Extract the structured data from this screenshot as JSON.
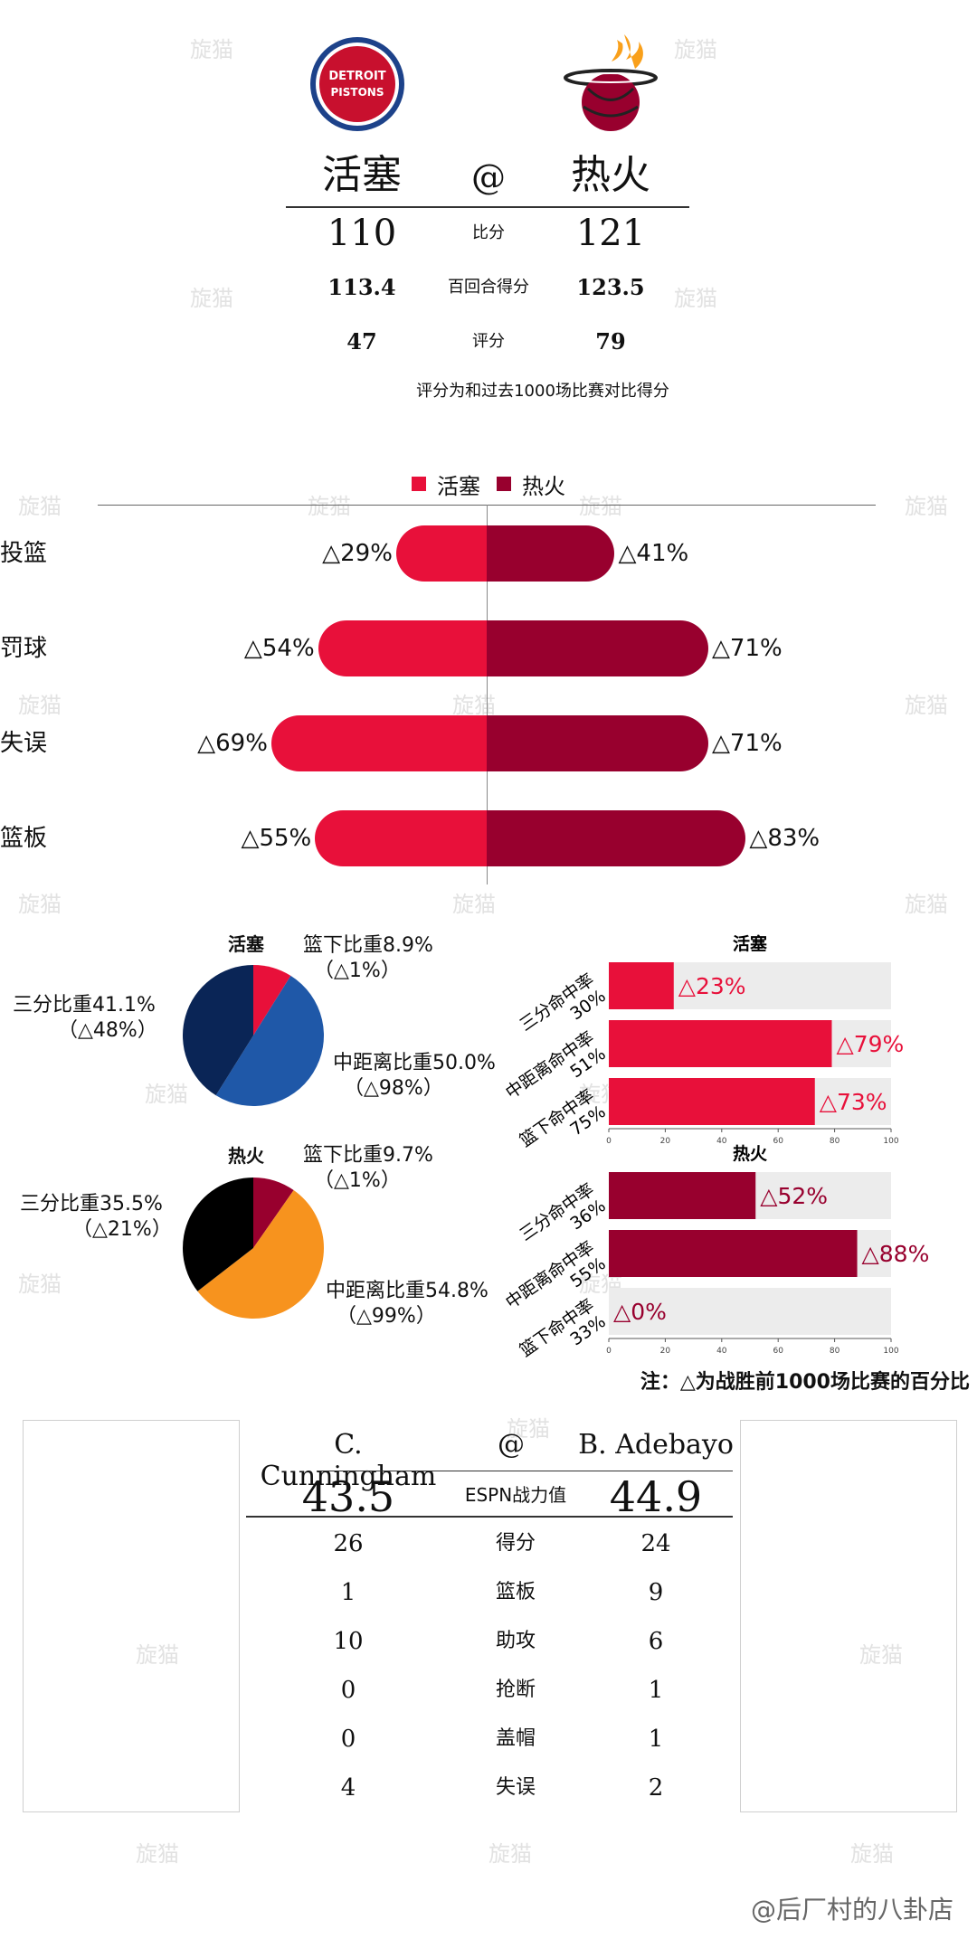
{
  "header": {
    "home_logo_text": "DETROIT PISTONS",
    "away_team": "活塞",
    "at_symbol": "@",
    "home_team": "热火",
    "rows": [
      {
        "label": "比分",
        "left": "110",
        "right": "121"
      },
      {
        "label": "百回合得分",
        "left": "113.4",
        "right": "123.5"
      },
      {
        "label": "评分",
        "left": "47",
        "right": "79"
      }
    ],
    "note": "评分为和过去1000场比赛对比得分"
  },
  "colors": {
    "pistons_red": "#e8103a",
    "heat_red": "#98002e",
    "pistons_navy": "#0a2556",
    "pistons_blue": "#1f58a8",
    "heat_orange": "#f7931e",
    "heat_black": "#000000",
    "track_gray": "#ececec"
  },
  "comparison_chart": {
    "legend": [
      "活塞",
      "热火"
    ],
    "rows": [
      {
        "label": "投篮",
        "left_label": "△29%",
        "right_label": "△41%",
        "left": 29,
        "right": 41
      },
      {
        "label": "罚球",
        "left_label": "△54%",
        "right_label": "△71%",
        "left": 54,
        "right": 71
      },
      {
        "label": "失误",
        "left_label": "△69%",
        "right_label": "△71%",
        "left": 69,
        "right": 71
      },
      {
        "label": "篮板",
        "left_label": "△55%",
        "right_label": "△83%",
        "left": 55,
        "right": 83
      }
    ]
  },
  "pistons_pie": {
    "title": "活塞",
    "slices": [
      {
        "name": "篮下比重8.9%",
        "sub": "（△1%）",
        "value": 8.9
      },
      {
        "name": "中距离比重50.0%",
        "sub": "（△98%）",
        "value": 50.0
      },
      {
        "name": "三分比重41.1%",
        "sub": "（△48%）",
        "value": 41.1
      }
    ]
  },
  "heat_pie": {
    "title": "热火",
    "slices": [
      {
        "name": "篮下比重9.7%",
        "sub": "（△1%）",
        "value": 9.7
      },
      {
        "name": "中距离比重54.8%",
        "sub": "（△99%）",
        "value": 54.8
      },
      {
        "name": "三分比重35.5%",
        "sub": "（△21%）",
        "value": 35.5
      }
    ]
  },
  "pistons_fg": {
    "title": "活塞",
    "ticks": [
      "0",
      "20",
      "40",
      "60",
      "80",
      "100"
    ],
    "rows": [
      {
        "label": "三分命中率",
        "pct": "30%",
        "value": 23,
        "value_label": "△23%"
      },
      {
        "label": "中距离命中率",
        "pct": "51%",
        "value": 79,
        "value_label": "△79%"
      },
      {
        "label": "篮下命中率",
        "pct": "75%",
        "value": 73,
        "value_label": "△73%"
      }
    ]
  },
  "heat_fg": {
    "title": "热火",
    "ticks": [
      "0",
      "20",
      "40",
      "60",
      "80",
      "100"
    ],
    "rows": [
      {
        "label": "三分命中率",
        "pct": "36%",
        "value": 52,
        "value_label": "△52%"
      },
      {
        "label": "中距离命中率",
        "pct": "55%",
        "value": 88,
        "value_label": "△88%"
      },
      {
        "label": "篮下命中率",
        "pct": "33%",
        "value": 0,
        "value_label": "△0%"
      }
    ]
  },
  "footnote": "注：△为战胜前1000场比赛的百分比",
  "players": {
    "left_name": "C. Cunningham",
    "at_symbol": "@",
    "right_name": "B. Adebayo",
    "espn": {
      "label": "ESPN战力值",
      "left": "43.5",
      "right": "44.9"
    },
    "rows": [
      {
        "label": "得分",
        "left": "26",
        "right": "24"
      },
      {
        "label": "篮板",
        "left": "1",
        "right": "9"
      },
      {
        "label": "助攻",
        "left": "10",
        "right": "6"
      },
      {
        "label": "抢断",
        "left": "0",
        "right": "1"
      },
      {
        "label": "盖帽",
        "left": "0",
        "right": "1"
      },
      {
        "label": "失误",
        "left": "4",
        "right": "2"
      }
    ]
  },
  "watermark": "旋猫",
  "credit": "@后厂村的八卦店",
  "chart_data": [
    {
      "type": "bar",
      "categories": [
        "投篮",
        "罚球",
        "失误",
        "篮板"
      ],
      "series": [
        {
          "name": "活塞",
          "values": [
            29,
            54,
            69,
            55
          ]
        },
        {
          "name": "热火",
          "values": [
            41,
            71,
            71,
            83
          ]
        }
      ],
      "legend": "top"
    },
    {
      "type": "pie",
      "title": "活塞",
      "categories": [
        "篮下比重",
        "中距离比重",
        "三分比重"
      ],
      "values": [
        8.9,
        50.0,
        41.1
      ]
    },
    {
      "type": "pie",
      "title": "热火",
      "categories": [
        "篮下比重",
        "中距离比重",
        "三分比重"
      ],
      "values": [
        9.7,
        54.8,
        35.5
      ]
    },
    {
      "type": "bar",
      "title": "活塞",
      "categories": [
        "三分命中率 30%",
        "中距离命中率 51%",
        "篮下命中率 75%"
      ],
      "values": [
        23,
        79,
        73
      ],
      "xlim": [
        0,
        100
      ]
    },
    {
      "type": "bar",
      "title": "热火",
      "categories": [
        "三分命中率 36%",
        "中距离命中率 55%",
        "篮下命中率 33%"
      ],
      "values": [
        52,
        88,
        0
      ],
      "xlim": [
        0,
        100
      ]
    }
  ]
}
